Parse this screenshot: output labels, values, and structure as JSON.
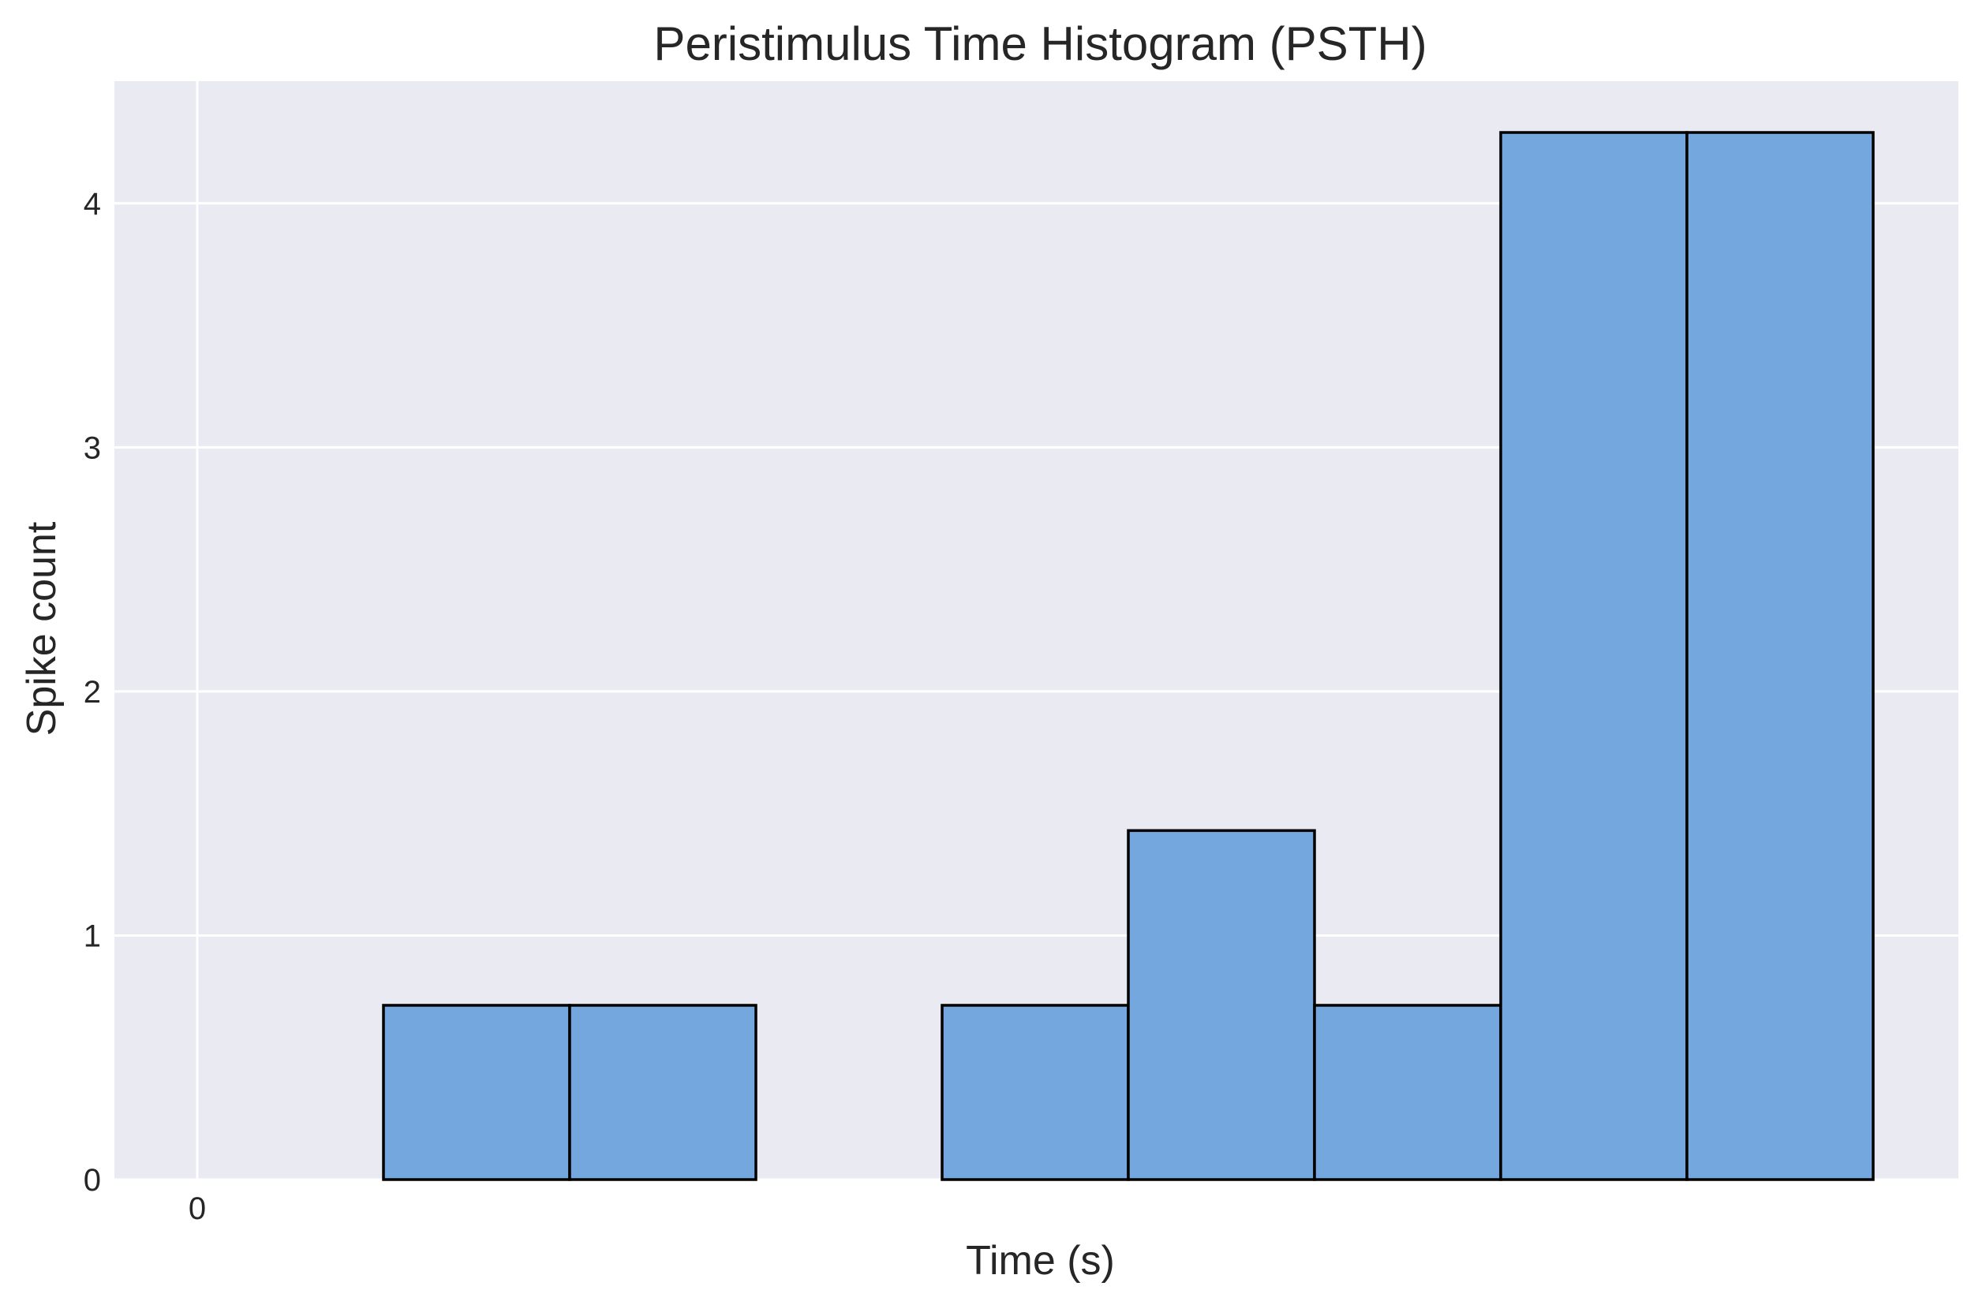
{
  "chart_data": {
    "type": "bar",
    "title": "Peristimulus Time Histogram (PSTH)",
    "xlabel": "Time (s)",
    "ylabel": "Spike count",
    "bins": [
      {
        "count": 0
      },
      {
        "count": 0.714
      },
      {
        "count": 0.714
      },
      {
        "count": 0
      },
      {
        "count": 0.714
      },
      {
        "count": 1.43
      },
      {
        "count": 0.714
      },
      {
        "count": 4.29
      },
      {
        "count": 4.29
      }
    ],
    "yticks": [
      0,
      1,
      2,
      3,
      4
    ],
    "xticks": [
      "0"
    ],
    "ylim": [
      0,
      4.5
    ],
    "grid": true,
    "colors": {
      "bar_fill": "#74a7dd",
      "bar_edge": "#000000",
      "plot_background": "#eaeaf2",
      "grid": "#ffffff"
    }
  }
}
